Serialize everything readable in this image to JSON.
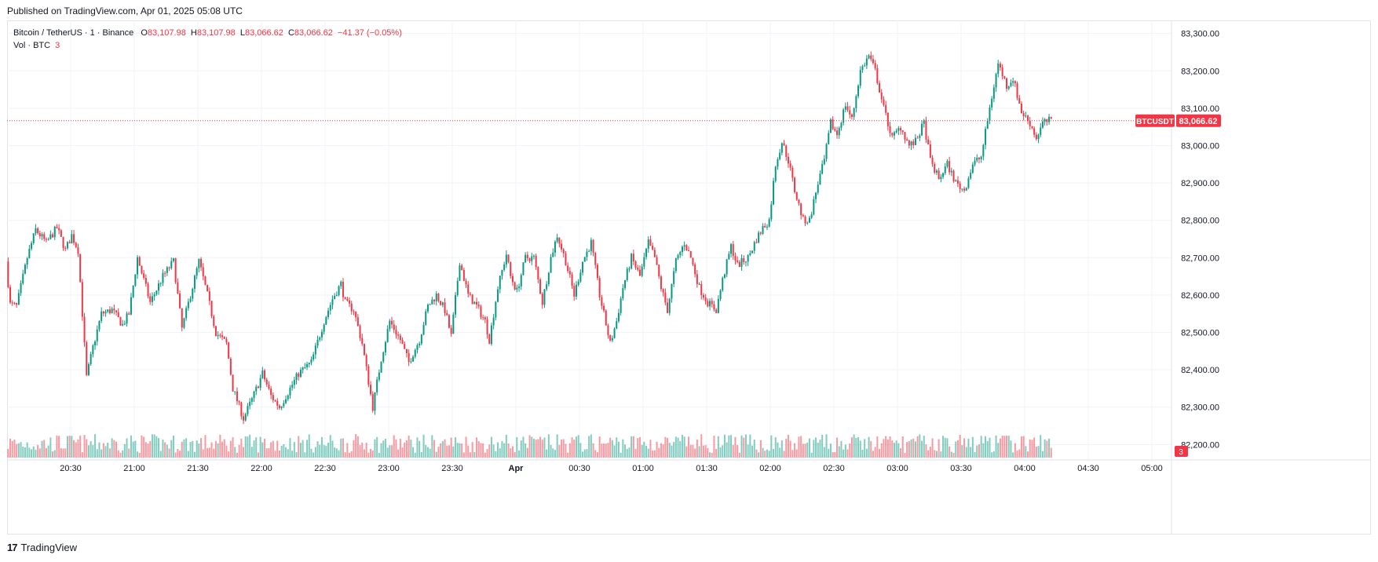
{
  "header": {
    "published": "Published on TradingView.com, Apr 01, 2025 05:08 UTC"
  },
  "legend": {
    "symbol": "Bitcoin / TetherUS · 1 · Binance",
    "o_label": "O",
    "o_value": "83,107.98",
    "h_label": "H",
    "h_value": "83,107.98",
    "l_label": "L",
    "l_value": "83,066.62",
    "c_label": "C",
    "c_value": "83,066.62",
    "change": "−41.37 (−0.05%)",
    "volume_label": "Vol · BTC",
    "volume_value": "3"
  },
  "price_badge": {
    "symbol": "BTCUSDT",
    "price": "83,066.62",
    "value": 83066.62
  },
  "volume_badge": {
    "value": "3"
  },
  "footer": {
    "brand": "TradingView"
  },
  "colors": {
    "up": "#089981",
    "down": "#f23645",
    "grid": "#f0f3fa",
    "text": "#131722",
    "border": "#e0e3eb"
  },
  "chart_data": {
    "type": "candlestick",
    "y_axis_ticks": [
      "82,200.00",
      "82,300.00",
      "82,400.00",
      "82,500.00",
      "82,600.00",
      "82,700.00",
      "82,800.00",
      "82,900.00",
      "83,000.00",
      "83,100.00",
      "83,200.00",
      "83,300.00"
    ],
    "y_axis_values": [
      82200,
      82300,
      82400,
      82500,
      82600,
      82700,
      82800,
      82900,
      83000,
      83100,
      83200,
      83300
    ],
    "ylim": [
      82165,
      83335
    ],
    "x_axis_ticks": [
      "20:30",
      "21:00",
      "21:30",
      "22:00",
      "22:30",
      "23:00",
      "23:30",
      "Apr",
      "00:30",
      "01:00",
      "01:30",
      "02:00",
      "02:30",
      "03:00",
      "03:30",
      "04:00",
      "04:30",
      "05:00"
    ],
    "x_axis_minutes": [
      30,
      60,
      90,
      120,
      150,
      180,
      210,
      240,
      270,
      300,
      330,
      360,
      390,
      420,
      450,
      480,
      510,
      540
    ],
    "x_axis_start": "2025-03-31 20:00 UTC",
    "x_axis_unit": "minutes",
    "candle_interval": "1 minute",
    "path_anchors": [
      [
        0,
        82690
      ],
      [
        2,
        82575
      ],
      [
        5,
        82570
      ],
      [
        10,
        82700
      ],
      [
        14,
        82775
      ],
      [
        19,
        82740
      ],
      [
        24,
        82780
      ],
      [
        28,
        82720
      ],
      [
        31,
        82760
      ],
      [
        34,
        82720
      ],
      [
        38,
        82380
      ],
      [
        41,
        82460
      ],
      [
        45,
        82550
      ],
      [
        50,
        82560
      ],
      [
        55,
        82520
      ],
      [
        58,
        82550
      ],
      [
        62,
        82700
      ],
      [
        68,
        82580
      ],
      [
        74,
        82650
      ],
      [
        79,
        82690
      ],
      [
        83,
        82510
      ],
      [
        87,
        82600
      ],
      [
        91,
        82690
      ],
      [
        95,
        82600
      ],
      [
        99,
        82500
      ],
      [
        104,
        82470
      ],
      [
        107,
        82350
      ],
      [
        112,
        82270
      ],
      [
        116,
        82320
      ],
      [
        121,
        82390
      ],
      [
        125,
        82330
      ],
      [
        129,
        82300
      ],
      [
        133,
        82340
      ],
      [
        138,
        82390
      ],
      [
        144,
        82420
      ],
      [
        150,
        82530
      ],
      [
        154,
        82590
      ],
      [
        158,
        82630
      ],
      [
        160,
        82580
      ],
      [
        164,
        82560
      ],
      [
        168,
        82470
      ],
      [
        173,
        82300
      ],
      [
        177,
        82430
      ],
      [
        181,
        82530
      ],
      [
        186,
        82480
      ],
      [
        190,
        82420
      ],
      [
        195,
        82480
      ],
      [
        199,
        82570
      ],
      [
        203,
        82600
      ],
      [
        207,
        82560
      ],
      [
        210,
        82490
      ],
      [
        214,
        82690
      ],
      [
        218,
        82600
      ],
      [
        222,
        82570
      ],
      [
        226,
        82530
      ],
      [
        228,
        82480
      ],
      [
        232,
        82620
      ],
      [
        236,
        82710
      ],
      [
        238,
        82650
      ],
      [
        241,
        82610
      ],
      [
        245,
        82700
      ],
      [
        249,
        82700
      ],
      [
        253,
        82580
      ],
      [
        257,
        82700
      ],
      [
        260,
        82760
      ],
      [
        264,
        82690
      ],
      [
        268,
        82600
      ],
      [
        272,
        82690
      ],
      [
        276,
        82740
      ],
      [
        280,
        82600
      ],
      [
        285,
        82470
      ],
      [
        288,
        82530
      ],
      [
        291,
        82620
      ],
      [
        295,
        82700
      ],
      [
        299,
        82650
      ],
      [
        303,
        82740
      ],
      [
        306,
        82700
      ],
      [
        309,
        82620
      ],
      [
        312,
        82560
      ],
      [
        316,
        82690
      ],
      [
        320,
        82740
      ],
      [
        323,
        82700
      ],
      [
        327,
        82620
      ],
      [
        331,
        82580
      ],
      [
        335,
        82560
      ],
      [
        338,
        82640
      ],
      [
        342,
        82730
      ],
      [
        345,
        82680
      ],
      [
        350,
        82700
      ],
      [
        354,
        82750
      ],
      [
        357,
        82780
      ],
      [
        360,
        82800
      ],
      [
        363,
        82950
      ],
      [
        366,
        83010
      ],
      [
        369,
        82960
      ],
      [
        372,
        82880
      ],
      [
        376,
        82800
      ],
      [
        379,
        82800
      ],
      [
        383,
        82900
      ],
      [
        386,
        82960
      ],
      [
        389,
        83060
      ],
      [
        392,
        83030
      ],
      [
        396,
        83110
      ],
      [
        399,
        83070
      ],
      [
        403,
        83200
      ],
      [
        407,
        83240
      ],
      [
        410,
        83200
      ],
      [
        414,
        83100
      ],
      [
        418,
        83020
      ],
      [
        422,
        83050
      ],
      [
        426,
        83000
      ],
      [
        429,
        83010
      ],
      [
        433,
        83060
      ],
      [
        436,
        82960
      ],
      [
        440,
        82910
      ],
      [
        444,
        82950
      ],
      [
        448,
        82900
      ],
      [
        452,
        82880
      ],
      [
        456,
        82950
      ],
      [
        460,
        82970
      ],
      [
        464,
        83100
      ],
      [
        468,
        83220
      ],
      [
        472,
        83160
      ],
      [
        475,
        83180
      ],
      [
        479,
        83090
      ],
      [
        483,
        83060
      ],
      [
        486,
        83020
      ],
      [
        489,
        83060
      ],
      [
        492,
        83066
      ]
    ]
  }
}
